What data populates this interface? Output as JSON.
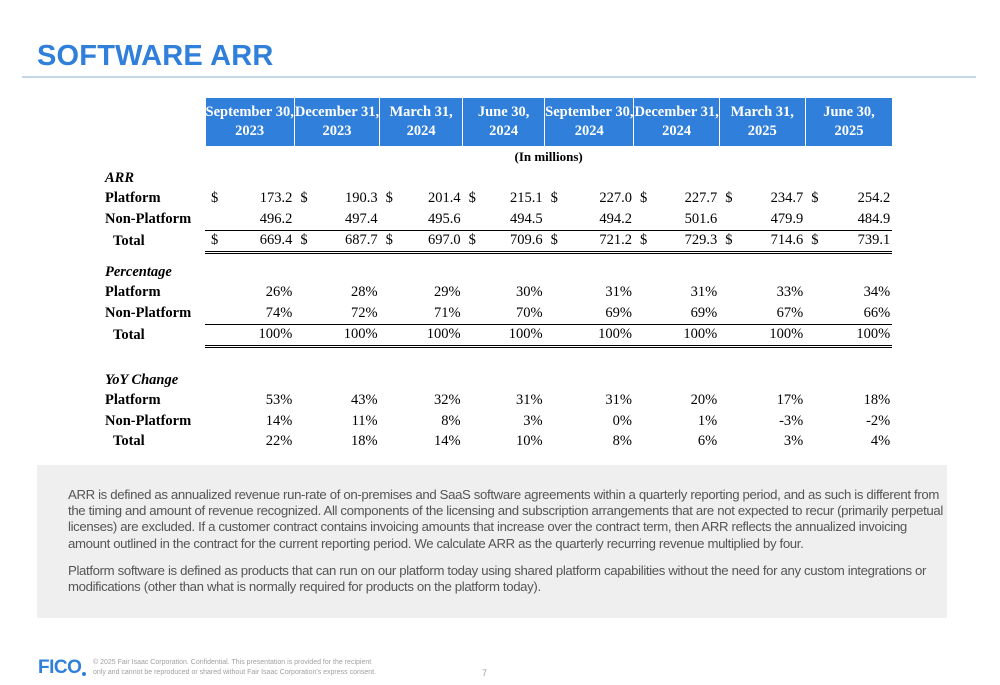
{
  "title": "SOFTWARE ARR",
  "table": {
    "columns": [
      {
        "line1": "September 30,",
        "line2": "2023"
      },
      {
        "line1": "December 31,",
        "line2": "2023"
      },
      {
        "line1": "March 31,",
        "line2": "2024"
      },
      {
        "line1": "June 30,",
        "line2": "2024"
      },
      {
        "line1": "September 30,",
        "line2": "2024"
      },
      {
        "line1": "December 31,",
        "line2": "2024"
      },
      {
        "line1": "March 31,",
        "line2": "2025"
      },
      {
        "line1": "June 30,",
        "line2": "2025"
      }
    ],
    "unit_note": "(In millions)",
    "arr": {
      "heading": "ARR",
      "currency": "$",
      "rows": [
        {
          "label": "Platform",
          "dollar": true,
          "values": [
            "173.2",
            "190.3",
            "201.4",
            "215.1",
            "227.0",
            "227.7",
            "234.7",
            "254.2"
          ]
        },
        {
          "label": "Non-Platform",
          "dollar": false,
          "values": [
            "496.2",
            "497.4",
            "495.6",
            "494.5",
            "494.2",
            "501.6",
            "479.9",
            "484.9"
          ]
        },
        {
          "label": "Total",
          "dollar": true,
          "values": [
            "669.4",
            "687.7",
            "697.0",
            "709.6",
            "721.2",
            "729.3",
            "714.6",
            "739.1"
          ]
        }
      ]
    },
    "percentage": {
      "heading": "Percentage",
      "rows": [
        {
          "label": "Platform",
          "values": [
            "26%",
            "28%",
            "29%",
            "30%",
            "31%",
            "31%",
            "33%",
            "34%"
          ]
        },
        {
          "label": "Non-Platform",
          "values": [
            "74%",
            "72%",
            "71%",
            "70%",
            "69%",
            "69%",
            "67%",
            "66%"
          ]
        },
        {
          "label": "Total",
          "values": [
            "100%",
            "100%",
            "100%",
            "100%",
            "100%",
            "100%",
            "100%",
            "100%"
          ]
        }
      ]
    },
    "yoy": {
      "heading": "YoY Change",
      "rows": [
        {
          "label": "Platform",
          "values": [
            "53%",
            "43%",
            "32%",
            "31%",
            "31%",
            "20%",
            "17%",
            "18%"
          ]
        },
        {
          "label": "Non-Platform",
          "values": [
            "14%",
            "11%",
            "8%",
            "3%",
            "0%",
            "1%",
            "-3%",
            "-2%"
          ]
        },
        {
          "label": "Total",
          "values": [
            "22%",
            "18%",
            "14%",
            "10%",
            "8%",
            "6%",
            "3%",
            "4%"
          ]
        }
      ]
    }
  },
  "notes": {
    "p1": "ARR is defined as annualized revenue run-rate of on-premises and SaaS software agreements within a quarterly reporting period, and as such is different from the timing and amount of revenue recognized. All components of the licensing and subscription arrangements that are not expected to recur (primarily perpetual licenses) are excluded.  If a customer contract contains invoicing amounts that increase over the contract term, then ARR reflects the annualized invoicing amount outlined in the contract for the current reporting period. We calculate ARR as the quarterly recurring revenue multiplied by four.",
    "p2": "Platform software is defined as products that can run on our platform today using shared platform capabilities without the need for any custom integrations or modifications (other than what is normally required for products on the platform today)."
  },
  "footer": {
    "logo": "FICO",
    "copyright_line1": "© 2025 Fair Isaac Corporation. Confidential. This presentation is provided for the recipient",
    "copyright_line2": "only and cannot be reproduced or shared without Fair Isaac Corporation's express consent.",
    "page_number": "7"
  },
  "colors": {
    "accent": "#2f7fdb",
    "note_bg": "#efefef"
  }
}
